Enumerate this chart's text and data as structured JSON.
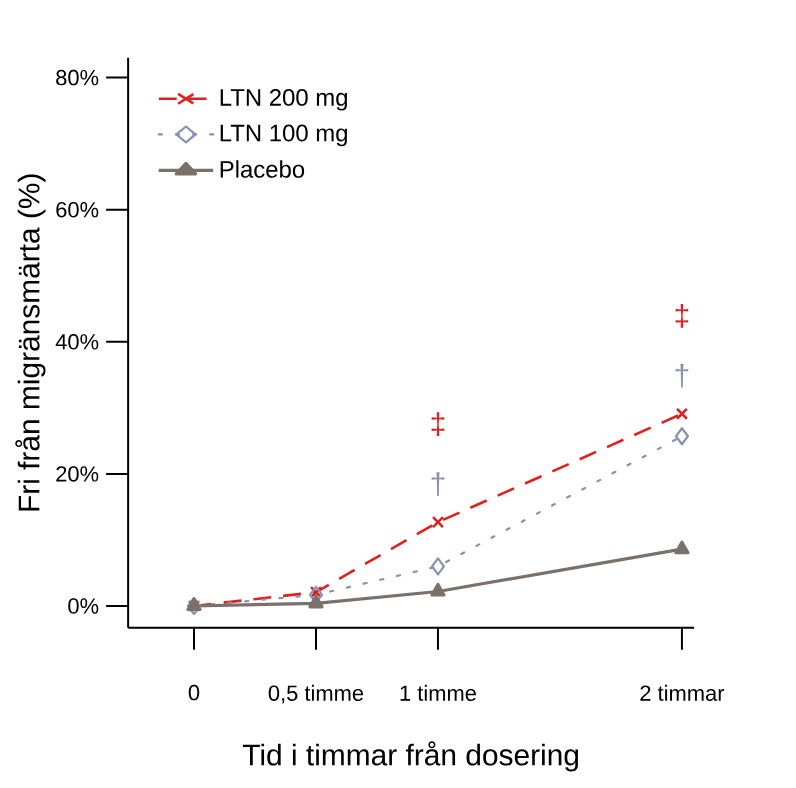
{
  "chart_data": {
    "type": "line",
    "xlabel": "Tid i timmar från dosering",
    "ylabel": "Fri från migränsmärta (%)",
    "xlim": [
      -0.27,
      2.05
    ],
    "ylim": [
      -3.3,
      83
    ],
    "xticks": [
      {
        "value": 0,
        "label": "0"
      },
      {
        "value": 0.5,
        "label": "0,5 timme"
      },
      {
        "value": 1,
        "label": "1 timme"
      },
      {
        "value": 2,
        "label": "2 timmar"
      }
    ],
    "yticks": [
      {
        "value": 0,
        "label": "0%"
      },
      {
        "value": 20,
        "label": "20%"
      },
      {
        "value": 40,
        "label": "40%"
      },
      {
        "value": 60,
        "label": "60%"
      },
      {
        "value": 80,
        "label": "80%"
      }
    ],
    "x": [
      0,
      0.5,
      1,
      2
    ],
    "series": [
      {
        "name": "LTN 200 mg",
        "color": "#e0201e",
        "values": [
          0,
          2.1,
          12.7,
          29.1
        ],
        "marker": "cross",
        "line_style": "dashed"
      },
      {
        "name": "LTN 100 mg",
        "color": "#8c90b0",
        "values": [
          0,
          1.7,
          6.0,
          25.7
        ],
        "marker": "diamond",
        "line_style": "dotted"
      },
      {
        "name": "Placebo",
        "color": "#7a716a",
        "values": [
          0,
          0.4,
          2.2,
          8.6
        ],
        "marker": "triangle",
        "line_style": "solid"
      }
    ],
    "annotations": [
      "‡",
      "†",
      "‡",
      "†"
    ],
    "legend": "top left",
    "grid": false
  }
}
